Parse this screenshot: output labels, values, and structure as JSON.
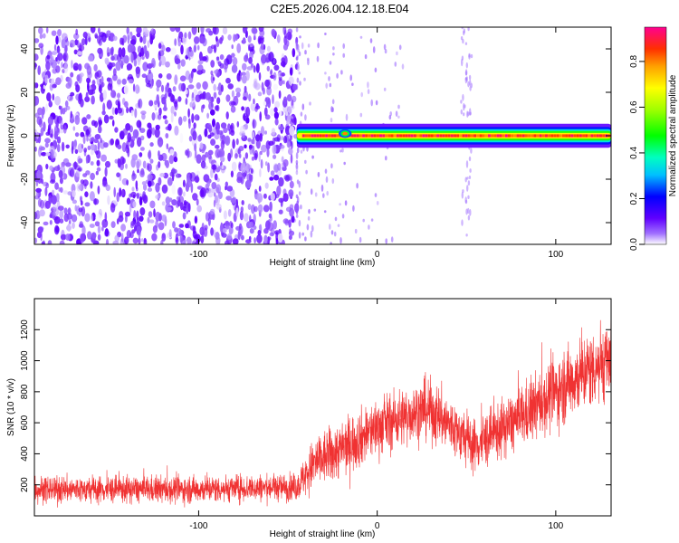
{
  "figure": {
    "title": "C2E5.2026.004.12.18.E04"
  },
  "chart_data": [
    {
      "type": "heatmap",
      "xlabel": "Height of straight line (km)",
      "ylabel": "Frequency (Hz)",
      "xlim": [
        -192,
        131
      ],
      "ylim": [
        -50,
        50
      ],
      "x_ticks": [
        -100,
        0,
        100
      ],
      "y_ticks": [
        -40,
        -20,
        0,
        20,
        40
      ],
      "colorbar": {
        "label": "Normalized spectral amplitude",
        "range": [
          0,
          0.95
        ],
        "ticks": [
          0.0,
          0.2,
          0.4,
          0.6,
          0.8
        ]
      },
      "regions": [
        {
          "x": [
            -192,
            -45
          ],
          "y": [
            -50,
            50
          ],
          "value_range": [
            0.0,
            0.1
          ]
        },
        {
          "x": [
            -45,
            131
          ],
          "y": [
            -2,
            2
          ],
          "value_range": [
            0.1,
            0.95
          ]
        },
        {
          "x": [
            47,
            53
          ],
          "y": [
            -5,
            5
          ],
          "value_range": [
            0.05,
            0.15
          ]
        },
        {
          "x": [
            -22,
            -14
          ],
          "y": [
            -1,
            3
          ],
          "value_range": [
            0.3,
            0.9
          ]
        }
      ]
    },
    {
      "type": "line",
      "xlabel": "Height of straight line (km)",
      "ylabel": "SNR (10 * v/v)",
      "xlim": [
        -192,
        131
      ],
      "ylim": [
        0,
        1400
      ],
      "x_ticks": [
        -100,
        0,
        100
      ],
      "y_ticks": [
        200,
        400,
        600,
        800,
        1000,
        1200
      ],
      "series": [
        {
          "color": "#f03232",
          "x": [
            -190,
            -150,
            -110,
            -70,
            -45,
            -35,
            -20,
            0,
            10,
            20,
            27,
            35,
            45,
            55,
            70,
            85,
            100,
            110,
            120,
            125,
            130
          ],
          "mean": [
            170,
            170,
            170,
            180,
            185,
            340,
            430,
            570,
            620,
            660,
            690,
            640,
            540,
            450,
            560,
            670,
            800,
            880,
            950,
            990,
            1000
          ],
          "spread": [
            80,
            80,
            80,
            80,
            80,
            160,
            170,
            170,
            170,
            170,
            180,
            180,
            170,
            160,
            170,
            190,
            210,
            220,
            230,
            240,
            240
          ]
        }
      ]
    }
  ]
}
